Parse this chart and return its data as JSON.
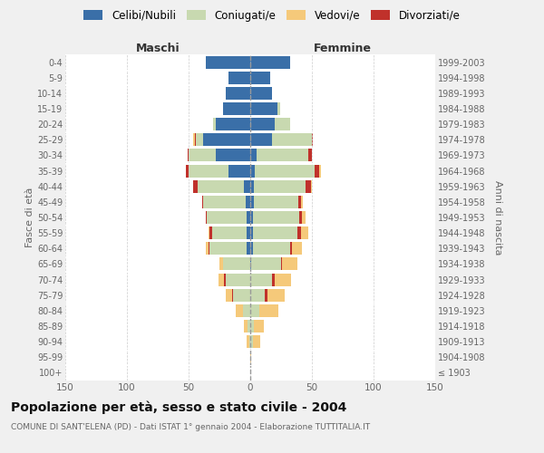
{
  "age_groups": [
    "100+",
    "95-99",
    "90-94",
    "85-89",
    "80-84",
    "75-79",
    "70-74",
    "65-69",
    "60-64",
    "55-59",
    "50-54",
    "45-49",
    "40-44",
    "35-39",
    "30-34",
    "25-29",
    "20-24",
    "15-19",
    "10-14",
    "5-9",
    "0-4"
  ],
  "birth_years": [
    "≤ 1903",
    "1904-1908",
    "1909-1913",
    "1914-1918",
    "1919-1923",
    "1924-1928",
    "1929-1933",
    "1934-1938",
    "1939-1943",
    "1944-1948",
    "1949-1953",
    "1954-1958",
    "1959-1963",
    "1964-1968",
    "1969-1973",
    "1974-1978",
    "1979-1983",
    "1984-1988",
    "1989-1993",
    "1994-1998",
    "1999-2003"
  ],
  "maschi": {
    "celibi": [
      0,
      0,
      0,
      0,
      0,
      0,
      0,
      0,
      3,
      3,
      3,
      4,
      5,
      18,
      28,
      38,
      28,
      22,
      20,
      18,
      36
    ],
    "coniugati": [
      0,
      0,
      1,
      2,
      6,
      14,
      20,
      22,
      30,
      28,
      32,
      34,
      38,
      32,
      22,
      6,
      2,
      0,
      0,
      0,
      0
    ],
    "vedovi": [
      0,
      0,
      2,
      3,
      6,
      5,
      5,
      3,
      2,
      1,
      0,
      0,
      0,
      0,
      0,
      1,
      0,
      0,
      0,
      0,
      0
    ],
    "divorziati": [
      0,
      0,
      0,
      0,
      0,
      1,
      1,
      0,
      1,
      2,
      1,
      1,
      3,
      2,
      1,
      1,
      0,
      0,
      0,
      0,
      0
    ]
  },
  "femmine": {
    "nubili": [
      0,
      0,
      0,
      0,
      0,
      0,
      0,
      1,
      2,
      2,
      2,
      3,
      3,
      4,
      5,
      18,
      20,
      22,
      18,
      16,
      32
    ],
    "coniugate": [
      0,
      0,
      2,
      3,
      7,
      12,
      18,
      24,
      30,
      36,
      38,
      36,
      42,
      48,
      42,
      32,
      12,
      2,
      0,
      0,
      0
    ],
    "vedove": [
      0,
      1,
      6,
      8,
      16,
      14,
      13,
      12,
      8,
      6,
      3,
      2,
      1,
      1,
      0,
      0,
      0,
      0,
      0,
      0,
      0
    ],
    "divorziate": [
      0,
      0,
      0,
      0,
      0,
      2,
      2,
      1,
      2,
      3,
      2,
      2,
      4,
      4,
      3,
      1,
      0,
      0,
      0,
      0,
      0
    ]
  },
  "colors": {
    "celibi": "#3a6fa8",
    "coniugati": "#c8d9b0",
    "vedovi": "#f5c97a",
    "divorziati": "#c0312b"
  },
  "xlim": 150,
  "title": "Popolazione per età, sesso e stato civile - 2004",
  "subtitle": "COMUNE DI SANT'ELENA (PD) - Dati ISTAT 1° gennaio 2004 - Elaborazione TUTTITALIA.IT",
  "ylabel_left": "Fasce di età",
  "ylabel_right": "Anni di nascita",
  "xlabel_maschi": "Maschi",
  "xlabel_femmine": "Femmine",
  "legend_labels": [
    "Celibi/Nubili",
    "Coniugati/e",
    "Vedovi/e",
    "Divorziati/e"
  ],
  "bg_color": "#f0f0f0",
  "plot_bg": "#ffffff",
  "grid_color": "#cccccc",
  "text_color": "#666666",
  "title_color": "#111111"
}
